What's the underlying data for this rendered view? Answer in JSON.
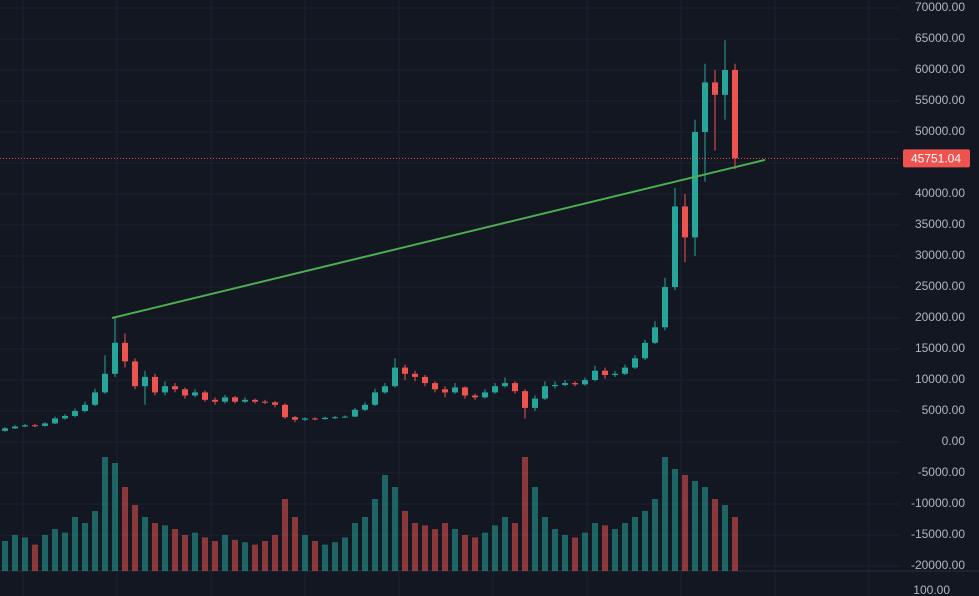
{
  "chart_data": {
    "type": "candlestick",
    "open": [
      1800,
      2200,
      2500,
      2700,
      2600,
      3000,
      3800,
      4200,
      5000,
      6000,
      8000,
      11000,
      16000,
      13000,
      9000,
      10500,
      8000,
      9000,
      8500,
      7500,
      8000,
      6800,
      6500,
      7200,
      6500,
      6800,
      6500,
      6400,
      6000,
      4000,
      3600,
      3800,
      3700,
      3900,
      4000,
      4100,
      5200,
      6000,
      8000,
      9000,
      12000,
      11000,
      10500,
      9500,
      8500,
      8000,
      8800,
      7500,
      7200,
      8000,
      9000,
      9500,
      8200,
      5500,
      7000,
      9000,
      9200,
      9500,
      9300,
      10000,
      11500,
      10800,
      11000,
      12000,
      13500,
      16000,
      18500,
      25000,
      38000,
      33000,
      50000,
      58000,
      56000,
      60000
    ],
    "high": [
      2400,
      2700,
      2900,
      2900,
      3200,
      4100,
      4500,
      5400,
      6500,
      8600,
      14000,
      20000,
      17500,
      13500,
      11500,
      11000,
      9800,
      9500,
      8800,
      8500,
      8300,
      7200,
      7600,
      7400,
      7200,
      7000,
      6800,
      6600,
      6200,
      4200,
      4000,
      4000,
      4100,
      4200,
      4300,
      5500,
      6400,
      8600,
      9500,
      13500,
      12500,
      11500,
      10800,
      9800,
      9000,
      9500,
      9000,
      7800,
      8500,
      9500,
      10400,
      9800,
      8500,
      7500,
      9800,
      9800,
      10000,
      9800,
      10400,
      12300,
      12000,
      11500,
      12500,
      14000,
      16500,
      19500,
      26500,
      41000,
      40000,
      52000,
      61000,
      60000,
      64800,
      61000
    ],
    "low": [
      1700,
      2100,
      2400,
      2400,
      2500,
      2900,
      3600,
      4000,
      4800,
      5800,
      7800,
      10500,
      12000,
      8500,
      6000,
      7500,
      7500,
      8000,
      7000,
      7200,
      6500,
      6000,
      6200,
      6200,
      6300,
      6200,
      6100,
      5600,
      3700,
      3200,
      3400,
      3500,
      3600,
      3700,
      3900,
      4000,
      5000,
      5800,
      7800,
      8800,
      10000,
      9800,
      9000,
      8000,
      7200,
      7800,
      7000,
      6800,
      7000,
      7800,
      8800,
      7800,
      3800,
      5000,
      6800,
      8600,
      9000,
      9000,
      9100,
      9800,
      10200,
      10500,
      10800,
      11800,
      13200,
      15800,
      18000,
      24500,
      29000,
      30000,
      42000,
      47000,
      52000,
      44000
    ],
    "close": [
      2200,
      2500,
      2700,
      2600,
      3000,
      3800,
      4200,
      5000,
      6000,
      8000,
      11000,
      16000,
      13000,
      9000,
      10500,
      8000,
      9000,
      8500,
      7500,
      8000,
      6800,
      6500,
      7200,
      6500,
      6800,
      6500,
      6400,
      6000,
      4000,
      3600,
      3800,
      3700,
      3900,
      4000,
      4100,
      5200,
      6000,
      8000,
      9000,
      12000,
      11000,
      10500,
      9500,
      8500,
      8000,
      8800,
      7500,
      7200,
      8000,
      9000,
      9500,
      8200,
      5500,
      7000,
      9000,
      9200,
      9500,
      9300,
      10000,
      11500,
      10800,
      11000,
      12000,
      13500,
      16000,
      18500,
      25000,
      38000,
      33000,
      50000,
      58000,
      56000,
      60000,
      45751.04
    ],
    "volume": [
      25,
      30,
      28,
      22,
      30,
      35,
      32,
      45,
      40,
      50,
      95,
      90,
      70,
      55,
      45,
      40,
      38,
      35,
      30,
      32,
      28,
      25,
      30,
      26,
      24,
      22,
      25,
      30,
      60,
      45,
      30,
      25,
      22,
      24,
      28,
      40,
      45,
      60,
      80,
      70,
      50,
      40,
      38,
      35,
      40,
      35,
      30,
      28,
      32,
      38,
      45,
      40,
      95,
      70,
      45,
      35,
      30,
      28,
      32,
      40,
      38,
      35,
      40,
      45,
      50,
      60,
      95,
      85,
      80,
      75,
      70,
      60,
      55,
      45
    ],
    "up_color": "#26a69a",
    "down_color": "#ef5350",
    "ylim": [
      -20000,
      70000
    ],
    "yticks": [
      {
        "value": 70000,
        "label": "70000.00"
      },
      {
        "value": 65000,
        "label": "65000.00"
      },
      {
        "value": 60000,
        "label": "60000.00"
      },
      {
        "value": 55000,
        "label": "55000.00"
      },
      {
        "value": 50000,
        "label": "50000.00"
      },
      {
        "value": 45000,
        "label": "45000.00"
      },
      {
        "value": 40000,
        "label": "40000.00"
      },
      {
        "value": 35000,
        "label": "35000.00"
      },
      {
        "value": 30000,
        "label": "30000.00"
      },
      {
        "value": 25000,
        "label": "25000.00"
      },
      {
        "value": 20000,
        "label": "20000.00"
      },
      {
        "value": 15000,
        "label": "15000.00"
      },
      {
        "value": 10000,
        "label": "10000.00"
      },
      {
        "value": 5000,
        "label": "5000.00"
      },
      {
        "value": 0,
        "label": "0.00"
      },
      {
        "value": -5000,
        "label": "-5000.00"
      },
      {
        "value": -10000,
        "label": "-10000.00"
      },
      {
        "value": -15000,
        "label": "-15000.00"
      },
      {
        "value": -20000,
        "label": "-20000.00"
      }
    ],
    "volume_ylim": [
      0,
      100
    ],
    "volume_ticks": [
      {
        "value": 100,
        "label": "100.00"
      }
    ],
    "last_price": 45751.04,
    "trendline": {
      "x": [
        10.7,
        76
      ],
      "y": [
        20000,
        45500
      ],
      "color": "#4caf50"
    },
    "grid": true
  }
}
